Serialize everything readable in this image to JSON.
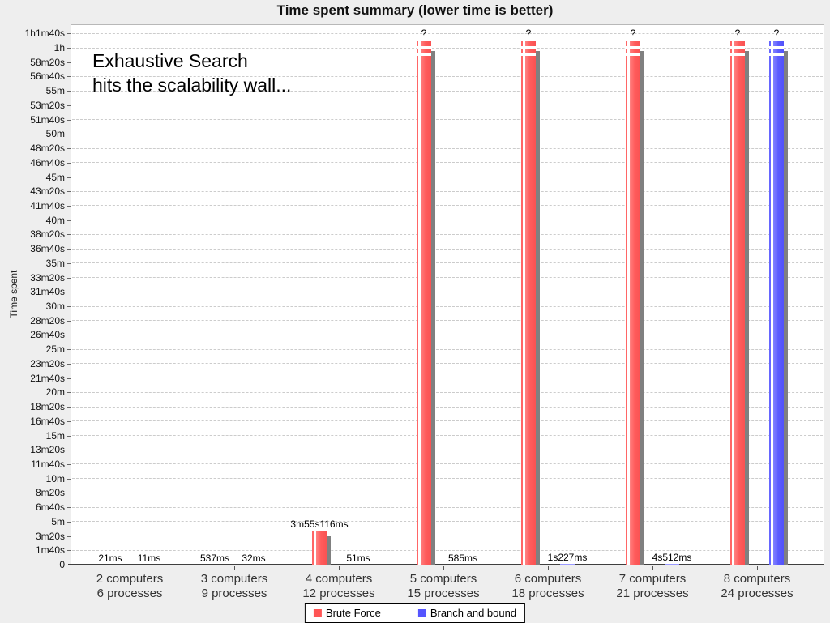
{
  "chart_data": {
    "type": "bar",
    "title": "Time spent summary (lower time is better)",
    "ylabel": "Time spent",
    "xlabel": "",
    "legend_position": "bottom-center",
    "grid": "horizontal-dashed",
    "failed_marker": "?",
    "annotation": {
      "lines": [
        "Exhaustive Search",
        "hits the scalability wall..."
      ]
    },
    "categories": [
      {
        "line1": "2 computers",
        "line2": "6 processes"
      },
      {
        "line1": "3 computers",
        "line2": "9 processes"
      },
      {
        "line1": "4 computers",
        "line2": "12 processes"
      },
      {
        "line1": "5 computers",
        "line2": "15 processes"
      },
      {
        "line1": "6 computers",
        "line2": "18 processes"
      },
      {
        "line1": "7 computers",
        "line2": "21 processes"
      },
      {
        "line1": "8 computers",
        "line2": "24 processes"
      }
    ],
    "series": [
      {
        "name": "Brute Force",
        "color": "#ff5555",
        "value_labels": [
          "21ms",
          "537ms",
          "3m55s116ms",
          "?",
          "?",
          "?",
          "?"
        ],
        "values_seconds": [
          0.021,
          0.537,
          235.116,
          null,
          null,
          null,
          null
        ]
      },
      {
        "name": "Branch and bound",
        "color": "#5555ff",
        "value_labels": [
          "11ms",
          "32ms",
          "51ms",
          "585ms",
          "1s227ms",
          "4s512ms",
          "?"
        ],
        "values_seconds": [
          0.011,
          0.032,
          0.051,
          0.585,
          1.227,
          4.512,
          null
        ]
      }
    ],
    "y_ticks": [
      {
        "label": "0",
        "seconds": 0
      },
      {
        "label": "1m40s",
        "seconds": 100
      },
      {
        "label": "3m20s",
        "seconds": 200
      },
      {
        "label": "5m",
        "seconds": 300
      },
      {
        "label": "6m40s",
        "seconds": 400
      },
      {
        "label": "8m20s",
        "seconds": 500
      },
      {
        "label": "10m",
        "seconds": 600
      },
      {
        "label": "11m40s",
        "seconds": 700
      },
      {
        "label": "13m20s",
        "seconds": 800
      },
      {
        "label": "15m",
        "seconds": 900
      },
      {
        "label": "16m40s",
        "seconds": 1000
      },
      {
        "label": "18m20s",
        "seconds": 1100
      },
      {
        "label": "20m",
        "seconds": 1200
      },
      {
        "label": "21m40s",
        "seconds": 1300
      },
      {
        "label": "23m20s",
        "seconds": 1400
      },
      {
        "label": "25m",
        "seconds": 1500
      },
      {
        "label": "26m40s",
        "seconds": 1600
      },
      {
        "label": "28m20s",
        "seconds": 1700
      },
      {
        "label": "30m",
        "seconds": 1800
      },
      {
        "label": "31m40s",
        "seconds": 1900
      },
      {
        "label": "33m20s",
        "seconds": 2000
      },
      {
        "label": "35m",
        "seconds": 2100
      },
      {
        "label": "36m40s",
        "seconds": 2200
      },
      {
        "label": "38m20s",
        "seconds": 2300
      },
      {
        "label": "40m",
        "seconds": 2400
      },
      {
        "label": "41m40s",
        "seconds": 2500
      },
      {
        "label": "43m20s",
        "seconds": 2600
      },
      {
        "label": "45m",
        "seconds": 2700
      },
      {
        "label": "46m40s",
        "seconds": 2800
      },
      {
        "label": "48m20s",
        "seconds": 2900
      },
      {
        "label": "50m",
        "seconds": 3000
      },
      {
        "label": "51m40s",
        "seconds": 3100
      },
      {
        "label": "53m20s",
        "seconds": 3200
      },
      {
        "label": "55m",
        "seconds": 3300
      },
      {
        "label": "56m40s",
        "seconds": 3400
      },
      {
        "label": "58m20s",
        "seconds": 3500
      },
      {
        "label": "1h",
        "seconds": 3600
      },
      {
        "label": "1h1m40s",
        "seconds": 3700
      }
    ],
    "colors": {
      "background": "#eeeeee",
      "plot_background": "#ffffff",
      "gridline": "#cccccc",
      "axis_line": "#3f3f3f",
      "shadow": "#808080",
      "brute_force": "#ff5555",
      "branch_and_bound": "#5555ff"
    }
  }
}
